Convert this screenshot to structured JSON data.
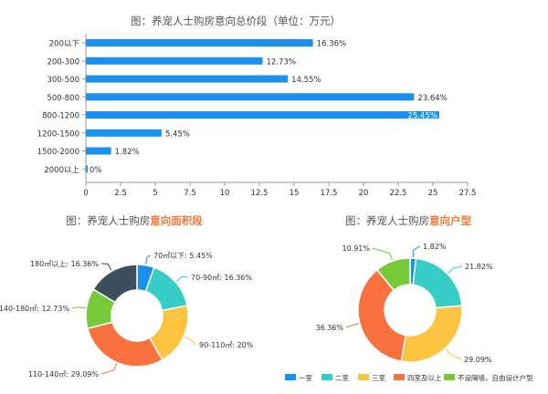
{
  "chart_data": [
    {
      "type": "bar",
      "orientation": "horizontal",
      "title": "图：养宠人士购房意向总价段（单位：万元）",
      "categories": [
        "200以下",
        "200-300",
        "300-500",
        "500-800",
        "800-1200",
        "1200-1500",
        "1500-2000",
        "2000以上"
      ],
      "values": [
        16.36,
        12.73,
        14.55,
        23.64,
        25.45,
        5.45,
        1.82,
        0
      ],
      "value_labels": [
        "16.36%",
        "12.73%",
        "14.55%",
        "23.64%",
        "25.45%",
        "5.45%",
        "1.82%",
        "0%"
      ],
      "xlim": [
        0,
        27.5
      ],
      "xticks": [
        0,
        2.5,
        5,
        7.5,
        10,
        12.5,
        15,
        17.5,
        20,
        22.5,
        25,
        27.5
      ],
      "xtick_labels": [
        "0",
        "2.5",
        "5",
        "7.5",
        "10",
        "12.5",
        "15",
        "17.5",
        "20",
        "22.5",
        "25",
        "27.5"
      ],
      "color": "#1a91ef",
      "grid": false
    },
    {
      "type": "pie",
      "donut": true,
      "title_prefix": "图：养宠人士购房",
      "title_highlight": "意向面积段",
      "title_highlight_color": "#f07a3a",
      "slices": [
        {
          "label": "70㎡以下: 5.45%",
          "value": 5.45,
          "color": "#1a91ef"
        },
        {
          "label": "70-90㎡: 16.36%",
          "value": 16.36,
          "color": "#36cdc6"
        },
        {
          "label": "90-110㎡: 20%",
          "value": 20,
          "color": "#fcc440"
        },
        {
          "label": "110-140㎡: 29.09%",
          "value": 29.09,
          "color": "#f8713f"
        },
        {
          "label": "140-180㎡: 12.73%",
          "value": 12.73,
          "color": "#77c93a"
        },
        {
          "label": "180㎡以上: 16.36%",
          "value": 16.36,
          "color": "#3d4e5c"
        }
      ]
    },
    {
      "type": "pie",
      "donut": true,
      "title_prefix": "图：养宠人士购房",
      "title_highlight": "意向户型",
      "title_highlight_color": "#f07a3a",
      "slices": [
        {
          "label": "1.82%",
          "value": 1.82,
          "color": "#1a91ef"
        },
        {
          "label": "21.82%",
          "value": 21.82,
          "color": "#36cdc6"
        },
        {
          "label": "29.09%",
          "value": 29.09,
          "color": "#fcc440"
        },
        {
          "label": "36.36%",
          "value": 36.36,
          "color": "#f8713f"
        },
        {
          "label": "10.91%",
          "value": 10.91,
          "color": "#77c93a"
        }
      ],
      "legend": [
        "一室",
        "二室",
        "三室",
        "四室及以上",
        "不设隔墙，自由设计户型"
      ],
      "legend_placement": "bottom"
    }
  ]
}
